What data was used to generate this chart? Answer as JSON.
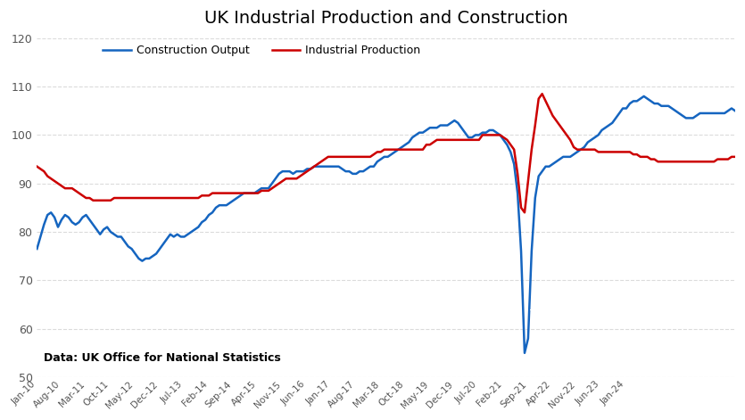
{
  "title": "UK Industrial Production and Construction",
  "source_text": "Data: UK Office for National Statistics",
  "construction_color": "#1565c0",
  "industrial_color": "#cc0000",
  "background_color": "#ffffff",
  "fxpro_bg": "#dd1111",
  "ylim": [
    50,
    120
  ],
  "yticks": [
    50,
    60,
    70,
    80,
    90,
    100,
    110,
    120
  ],
  "construction_label": "Construction Output",
  "industrial_label": "Industrial Production",
  "construction_data": [
    76.5,
    79.0,
    81.5,
    83.5,
    84.0,
    83.0,
    81.0,
    82.5,
    83.5,
    83.0,
    82.0,
    81.5,
    82.0,
    83.0,
    83.5,
    82.5,
    81.5,
    80.5,
    79.5,
    80.5,
    81.0,
    80.0,
    79.5,
    79.0,
    79.0,
    78.0,
    77.0,
    76.5,
    75.5,
    74.5,
    74.0,
    74.5,
    74.5,
    75.0,
    75.5,
    76.5,
    77.5,
    78.5,
    79.5,
    79.0,
    79.5,
    79.0,
    79.0,
    79.5,
    80.0,
    80.5,
    81.0,
    82.0,
    82.5,
    83.5,
    84.0,
    85.0,
    85.5,
    85.5,
    85.5,
    86.0,
    86.5,
    87.0,
    87.5,
    88.0,
    88.0,
    88.0,
    88.0,
    88.5,
    89.0,
    89.0,
    89.0,
    90.0,
    91.0,
    92.0,
    92.5,
    92.5,
    92.5,
    92.0,
    92.5,
    92.5,
    92.5,
    93.0,
    93.0,
    93.5,
    93.5,
    93.5,
    93.5,
    93.5,
    93.5,
    93.5,
    93.5,
    93.0,
    92.5,
    92.5,
    92.0,
    92.0,
    92.5,
    92.5,
    93.0,
    93.5,
    93.5,
    94.5,
    95.0,
    95.5,
    95.5,
    96.0,
    96.5,
    97.0,
    97.5,
    98.0,
    98.5,
    99.5,
    100.0,
    100.5,
    100.5,
    101.0,
    101.5,
    101.5,
    101.5,
    102.0,
    102.0,
    102.0,
    102.5,
    103.0,
    102.5,
    101.5,
    100.5,
    99.5,
    99.5,
    100.0,
    100.0,
    100.5,
    100.5,
    101.0,
    101.0,
    100.5,
    100.0,
    99.0,
    98.0,
    96.5,
    94.0,
    88.0,
    76.0,
    55.0,
    58.0,
    76.0,
    87.0,
    91.5,
    92.5,
    93.5,
    93.5,
    94.0,
    94.5,
    95.0,
    95.5,
    95.5,
    95.5,
    96.0,
    96.5,
    97.0,
    97.5,
    98.5,
    99.0,
    99.5,
    100.0,
    101.0,
    101.5,
    102.0,
    102.5,
    103.5,
    104.5,
    105.5,
    105.5,
    106.5,
    107.0,
    107.0,
    107.5,
    108.0,
    107.5,
    107.0,
    106.5,
    106.5,
    106.0,
    106.0,
    106.0,
    105.5,
    105.0,
    104.5,
    104.0,
    103.5,
    103.5,
    103.5,
    104.0,
    104.5,
    104.5,
    104.5,
    104.5,
    104.5,
    104.5,
    104.5,
    104.5,
    105.0,
    105.5,
    105.0
  ],
  "industrial_data": [
    93.5,
    93.0,
    92.5,
    91.5,
    91.0,
    90.5,
    90.0,
    89.5,
    89.0,
    89.0,
    89.0,
    88.5,
    88.0,
    87.5,
    87.0,
    87.0,
    86.5,
    86.5,
    86.5,
    86.5,
    86.5,
    86.5,
    87.0,
    87.0,
    87.0,
    87.0,
    87.0,
    87.0,
    87.0,
    87.0,
    87.0,
    87.0,
    87.0,
    87.0,
    87.0,
    87.0,
    87.0,
    87.0,
    87.0,
    87.0,
    87.0,
    87.0,
    87.0,
    87.0,
    87.0,
    87.0,
    87.0,
    87.5,
    87.5,
    87.5,
    88.0,
    88.0,
    88.0,
    88.0,
    88.0,
    88.0,
    88.0,
    88.0,
    88.0,
    88.0,
    88.0,
    88.0,
    88.0,
    88.0,
    88.5,
    88.5,
    88.5,
    89.0,
    89.5,
    90.0,
    90.5,
    91.0,
    91.0,
    91.0,
    91.0,
    91.5,
    92.0,
    92.5,
    93.0,
    93.5,
    94.0,
    94.5,
    95.0,
    95.5,
    95.5,
    95.5,
    95.5,
    95.5,
    95.5,
    95.5,
    95.5,
    95.5,
    95.5,
    95.5,
    95.5,
    95.5,
    96.0,
    96.5,
    96.5,
    97.0,
    97.0,
    97.0,
    97.0,
    97.0,
    97.0,
    97.0,
    97.0,
    97.0,
    97.0,
    97.0,
    97.0,
    98.0,
    98.0,
    98.5,
    99.0,
    99.0,
    99.0,
    99.0,
    99.0,
    99.0,
    99.0,
    99.0,
    99.0,
    99.0,
    99.0,
    99.0,
    99.0,
    100.0,
    100.0,
    100.0,
    100.0,
    100.0,
    100.0,
    99.5,
    99.0,
    98.0,
    97.0,
    92.0,
    85.0,
    84.0,
    90.5,
    97.0,
    102.0,
    107.5,
    108.5,
    107.0,
    105.5,
    104.0,
    103.0,
    102.0,
    101.0,
    100.0,
    99.0,
    97.5,
    97.0,
    97.0,
    97.0,
    97.0,
    97.0,
    97.0,
    96.5,
    96.5,
    96.5,
    96.5,
    96.5,
    96.5,
    96.5,
    96.5,
    96.5,
    96.5,
    96.0,
    96.0,
    95.5,
    95.5,
    95.5,
    95.0,
    95.0,
    94.5,
    94.5,
    94.5,
    94.5,
    94.5,
    94.5,
    94.5,
    94.5,
    94.5,
    94.5,
    94.5,
    94.5,
    94.5,
    94.5,
    94.5,
    94.5,
    94.5,
    95.0,
    95.0,
    95.0,
    95.0,
    95.5,
    95.5
  ],
  "x_tick_labels": [
    "Jan-10",
    "Aug-10",
    "Mar-11",
    "Oct-11",
    "May-12",
    "Dec-12",
    "Jul-13",
    "Feb-14",
    "Sep-14",
    "Apr-15",
    "Nov-15",
    "Jun-16",
    "Jan-17",
    "Aug-17",
    "Mar-18",
    "Oct-18",
    "May-19",
    "Dec-19",
    "Jul-20",
    "Feb-21",
    "Sep-21",
    "Apr-22",
    "Nov-22",
    "Jun-23",
    "Jan-24"
  ],
  "x_tick_positions": [
    0,
    7,
    14,
    21,
    28,
    35,
    42,
    49,
    56,
    63,
    70,
    77,
    84,
    91,
    98,
    105,
    112,
    119,
    126,
    133,
    140,
    147,
    154,
    161,
    168
  ]
}
